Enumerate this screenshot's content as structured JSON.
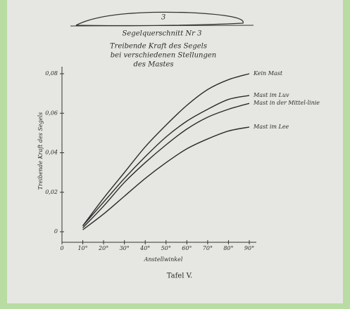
{
  "chart_data": {
    "type": "line",
    "airfoil_label": "3",
    "subtitle": "Segelquerschnitt Nr 3",
    "title_lines": [
      "Treibende Kraft des Segels",
      "bei verschiedenen Stellungen",
      "des Mastes"
    ],
    "y_label": "Treibende Kraft des Segels",
    "x_label": "Anstellwinkel",
    "caption": "Tafel V.",
    "x": [
      10,
      20,
      30,
      40,
      50,
      60,
      70,
      80,
      90
    ],
    "xlim": [
      0,
      90
    ],
    "xticks": [
      0,
      {
        "value": 10,
        "label": "10°"
      },
      {
        "value": 20,
        "label": "20°"
      },
      {
        "value": 30,
        "label": "30°"
      },
      {
        "value": 40,
        "label": "40°"
      },
      {
        "value": 50,
        "label": "50°"
      },
      {
        "value": 60,
        "label": "60°"
      },
      {
        "value": 70,
        "label": "70°"
      },
      {
        "value": 80,
        "label": "80°"
      },
      {
        "value": 90,
        "label": "90°"
      }
    ],
    "ylim": [
      0,
      0.08
    ],
    "yticks": [
      0,
      {
        "value": 0.02,
        "label": "0,02"
      },
      {
        "value": 0.04,
        "label": "0,04"
      },
      {
        "value": 0.06,
        "label": "0,06"
      },
      {
        "value": 0.08,
        "label": "0,08"
      }
    ],
    "series": [
      {
        "name": "Kein Mast",
        "color": "#2a2a2a",
        "values": [
          0.003,
          0.017,
          0.03,
          0.043,
          0.054,
          0.064,
          0.072,
          0.077,
          0.08
        ]
      },
      {
        "name": "Mast im Luv",
        "color": "#2a2a2a",
        "values": [
          0.003,
          0.015,
          0.027,
          0.038,
          0.048,
          0.056,
          0.062,
          0.067,
          0.069
        ]
      },
      {
        "name": "Mast in der Mittel-linie",
        "color": "#2a2a2a",
        "values": [
          0.002,
          0.013,
          0.025,
          0.035,
          0.044,
          0.052,
          0.058,
          0.062,
          0.065
        ]
      },
      {
        "name": "Mast im Lee",
        "color": "#2a2a2a",
        "values": [
          0.001,
          0.009,
          0.018,
          0.027,
          0.035,
          0.042,
          0.047,
          0.051,
          0.053
        ]
      }
    ]
  }
}
